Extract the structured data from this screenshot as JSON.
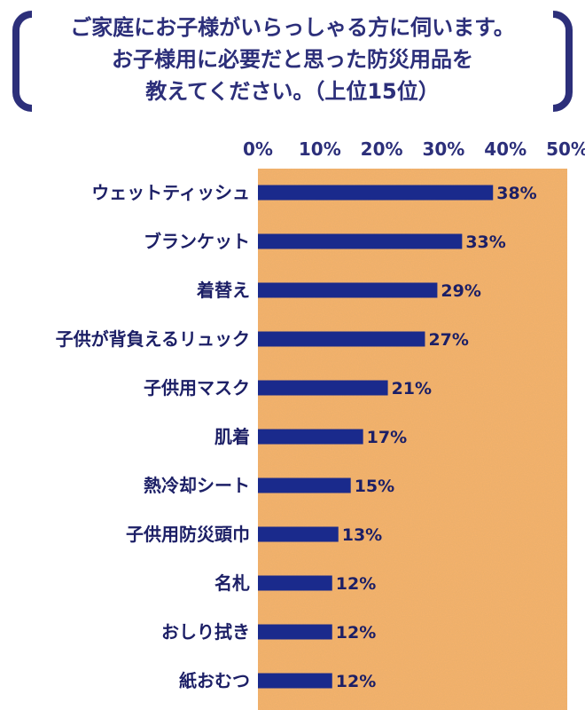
{
  "title": {
    "lines": [
      "ご家庭にお子様がいらっしゃる方に伺います。",
      "お子様用に必要だと思った防災用品を",
      "教えてください。（上位15位）"
    ]
  },
  "chart_data": {
    "type": "bar",
    "orientation": "horizontal",
    "categories": [
      "ウェットティッシュ",
      "ブランケット",
      "着替え",
      "子供が背負えるリュック",
      "子供用マスク",
      "肌着",
      "熱冷却シート",
      "子供用防災頭巾",
      "名札",
      "おしり拭き",
      "紙おむつ"
    ],
    "values": [
      38,
      33,
      29,
      27,
      21,
      17,
      15,
      13,
      12,
      12,
      12
    ],
    "data_labels": [
      "38%",
      "33%",
      "29%",
      "27%",
      "21%",
      "17%",
      "15%",
      "13%",
      "12%",
      "12%",
      "12%"
    ],
    "xticks": [
      "0%",
      "10%",
      "20%",
      "30%",
      "40%",
      "50%"
    ],
    "xlim": [
      0,
      50
    ],
    "axis_position": "top",
    "grid": false,
    "colors": {
      "bar": "#1a2a8c",
      "plot_bg": "#f8b46c",
      "text": "#2c2f7a",
      "label_text": "#1c1f66"
    }
  }
}
